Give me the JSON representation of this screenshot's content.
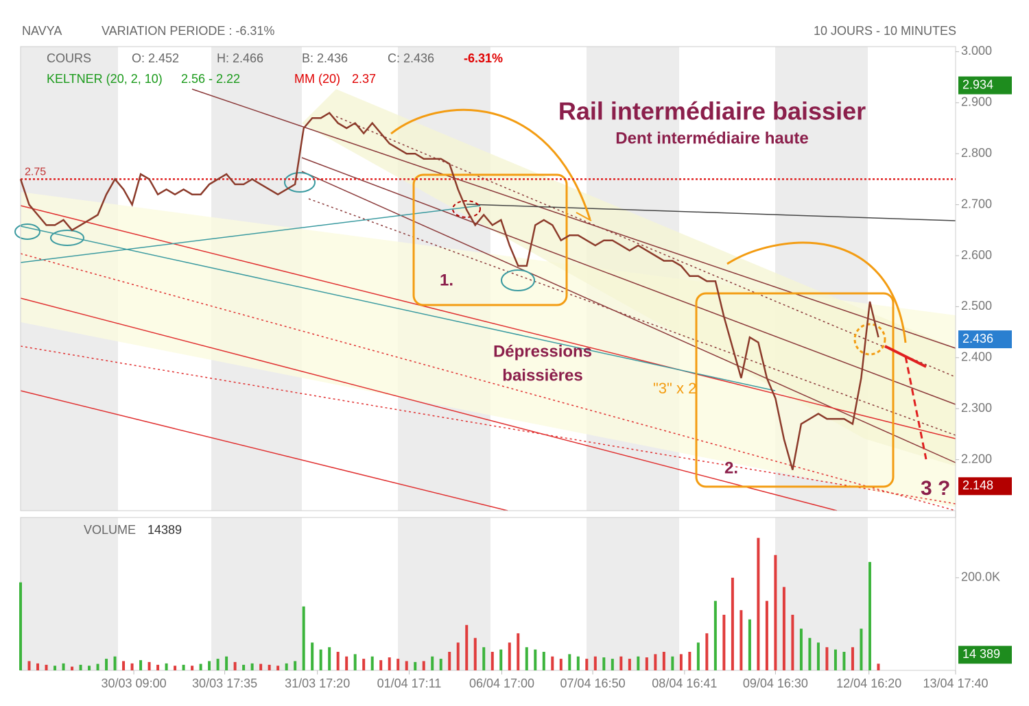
{
  "header": {
    "symbol": "NAVYA",
    "variation": "VARIATION PERIODE : -6.31%",
    "period": "10 JOURS - 10 MINUTES"
  },
  "legend": {
    "cours": "COURS",
    "open": "O: 2.452",
    "high": "H: 2.466",
    "low": "B: 2.436",
    "close": "C: 2.436",
    "change": "-6.31%",
    "keltner": "KELTNER (20, 2, 10)",
    "keltner_values": "2.56 - 2.22",
    "mm": "MM (20)",
    "mm_value": "2.37"
  },
  "annotations": [
    "Rail intermédiaire baissier",
    "Dent intermédiaire haute",
    "Dépressions",
    "baissières",
    "\"3\" x 2",
    "1.",
    "2.",
    "3 ?"
  ],
  "chart_data": [
    {
      "type": "line",
      "xlim": [
        0,
        109
      ],
      "ylim": [
        2.1,
        3.01
      ],
      "yticks": [
        {
          "value": 2.2,
          "label": "2.200"
        },
        {
          "value": 2.3,
          "label": "2.300"
        },
        {
          "value": 2.4,
          "label": "2.400"
        },
        {
          "value": 2.5,
          "label": "2.500"
        },
        {
          "value": 2.6,
          "label": "2.600"
        },
        {
          "value": 2.7,
          "label": "2.700"
        },
        {
          "value": 2.8,
          "label": "2.800"
        },
        {
          "value": 2.9,
          "label": "2.900"
        },
        {
          "value": 3.0,
          "label": "3.000"
        }
      ],
      "xticks": [
        {
          "value": 13.2,
          "label": "30/03 09:00"
        },
        {
          "value": 23.8,
          "label": "30/03 17:35"
        },
        {
          "value": 34.6,
          "label": "31/03 17:20"
        },
        {
          "value": 45.3,
          "label": "01/04 17:11"
        },
        {
          "value": 56.1,
          "label": "06/04 17:00"
        },
        {
          "value": 66.7,
          "label": "07/04 16:50"
        },
        {
          "value": 77.4,
          "label": "08/04 16:41"
        },
        {
          "value": 88,
          "label": "09/04 16:30"
        },
        {
          "value": 98.9,
          "label": "12/04 16:20"
        },
        {
          "value": 109,
          "label": "13/04 17:40"
        }
      ],
      "level": 2.75,
      "price_markers": [
        {
          "value": 2.934,
          "color": "#1e8c1e"
        },
        {
          "value": 2.436,
          "color": "#2a7fd0"
        },
        {
          "value": 2.148,
          "color": "#b30000"
        }
      ],
      "series": [
        {
          "name": "COURS",
          "color": "#8b3a2a",
          "values": [
            2.75,
            2.7,
            2.68,
            2.66,
            2.66,
            2.67,
            2.65,
            2.66,
            2.67,
            2.68,
            2.72,
            2.75,
            2.73,
            2.7,
            2.76,
            2.75,
            2.72,
            2.73,
            2.72,
            2.73,
            2.72,
            2.72,
            2.74,
            2.75,
            2.76,
            2.74,
            2.74,
            2.75,
            2.74,
            2.73,
            2.72,
            2.73,
            2.74,
            2.85,
            2.87,
            2.87,
            2.88,
            2.86,
            2.85,
            2.86,
            2.84,
            2.86,
            2.84,
            2.82,
            2.81,
            2.8,
            2.8,
            2.79,
            2.79,
            2.79,
            2.78,
            2.73,
            2.69,
            2.66,
            2.68,
            2.66,
            2.67,
            2.62,
            2.58,
            2.58,
            2.66,
            2.67,
            2.66,
            2.63,
            2.64,
            2.64,
            2.63,
            2.62,
            2.63,
            2.63,
            2.62,
            2.61,
            2.62,
            2.61,
            2.6,
            2.59,
            2.59,
            2.58,
            2.56,
            2.56,
            2.55,
            2.55,
            2.48,
            2.42,
            2.36,
            2.44,
            2.43,
            2.36,
            2.32,
            2.24,
            2.18,
            2.27,
            2.28,
            2.29,
            2.28,
            2.28,
            2.28,
            2.27,
            2.36,
            2.51,
            2.44
          ]
        }
      ]
    },
    {
      "type": "bar",
      "title": "VOLUME",
      "xlim": [
        0,
        109
      ],
      "ylim": [
        0,
        330000
      ],
      "yticks": [
        {
          "value": 200000,
          "label": "200.0K"
        }
      ],
      "last": {
        "value": 14389,
        "label": "14 389"
      },
      "colors": {
        "up": "#3cb43c",
        "down": "#e03c3c"
      },
      "values": [
        190000,
        20000,
        15000,
        12000,
        10000,
        15000,
        8000,
        12000,
        10000,
        14000,
        25000,
        30000,
        20000,
        15000,
        22000,
        18000,
        12000,
        15000,
        10000,
        12000,
        10000,
        14000,
        20000,
        25000,
        30000,
        18000,
        12000,
        15000,
        14000,
        12000,
        10000,
        15000,
        20000,
        138000,
        60000,
        45000,
        50000,
        40000,
        30000,
        35000,
        25000,
        30000,
        22000,
        28000,
        25000,
        20000,
        18000,
        20000,
        30000,
        25000,
        40000,
        60000,
        98000,
        70000,
        50000,
        40000,
        45000,
        60000,
        80000,
        50000,
        45000,
        40000,
        30000,
        25000,
        35000,
        30000,
        25000,
        30000,
        28000,
        25000,
        30000,
        25000,
        30000,
        28000,
        35000,
        40000,
        30000,
        35000,
        40000,
        60000,
        80000,
        150000,
        120000,
        200000,
        130000,
        110000,
        286000,
        150000,
        249000,
        180000,
        120000,
        90000,
        70000,
        60000,
        50000,
        45000,
        40000,
        50000,
        90000,
        234000,
        14389
      ]
    }
  ]
}
